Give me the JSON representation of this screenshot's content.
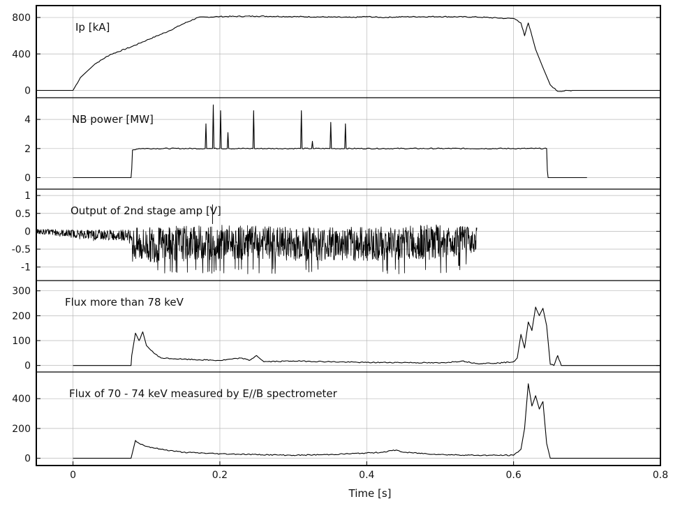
{
  "chart_data": {
    "type": "line",
    "xlabel": "Time [s]",
    "xlim": [
      -0.05,
      0.8
    ],
    "x_ticks": [
      0,
      0.2,
      0.4,
      0.6,
      0.8
    ],
    "x_tick_labels": [
      "0",
      "0.2",
      "0.4",
      "0.6",
      "0.8"
    ],
    "grid": true,
    "line_color": "#000000",
    "panels": [
      {
        "label": "Ip [kA]",
        "ylim": [
          -50,
          900
        ],
        "y_ticks": [
          0,
          400,
          800
        ],
        "y_tick_labels": [
          "0",
          "400",
          "800"
        ],
        "series": [
          {
            "x": [
              -0.05,
              0.0,
              0.01,
              0.03,
              0.05,
              0.08,
              0.1,
              0.13,
              0.15,
              0.17,
              0.2,
              0.25,
              0.3,
              0.35,
              0.38,
              0.4,
              0.42,
              0.45,
              0.5,
              0.55,
              0.59,
              0.6,
              0.605,
              0.61,
              0.615,
              0.62,
              0.625,
              0.63,
              0.64,
              0.65,
              0.66,
              0.68,
              0.7,
              0.75,
              0.8
            ],
            "y": [
              0,
              0,
              140,
              290,
              390,
              480,
              550,
              650,
              730,
              800,
              810,
              815,
              810,
              805,
              800,
              810,
              800,
              808,
              810,
              805,
              790,
              790,
              770,
              740,
              600,
              740,
              600,
              450,
              250,
              60,
              -10,
              0,
              0,
              0,
              0
            ]
          }
        ]
      },
      {
        "label": "NB power [MW]",
        "ylim": [
          -0.6,
          5.3
        ],
        "y_ticks": [
          0,
          2,
          4
        ],
        "y_tick_labels": [
          "0",
          "2",
          "4"
        ],
        "series": [
          {
            "x": [
              0.0,
              0.079,
              0.08,
              0.081,
              0.09,
              0.18,
              0.181,
              0.182,
              0.19,
              0.191,
              0.192,
              0.2,
              0.201,
              0.202,
              0.21,
              0.211,
              0.212,
              0.245,
              0.246,
              0.247,
              0.31,
              0.311,
              0.312,
              0.325,
              0.326,
              0.327,
              0.35,
              0.351,
              0.352,
              0.37,
              0.371,
              0.372,
              0.5,
              0.6,
              0.645,
              0.646,
              0.647,
              0.7
            ],
            "y": [
              0,
              0,
              0.6,
              1.9,
              2.0,
              2.0,
              3.7,
              2.0,
              2.0,
              5.0,
              2.0,
              2.0,
              4.6,
              2.0,
              2.0,
              3.1,
              2.0,
              2.0,
              4.6,
              2.0,
              2.0,
              4.6,
              2.0,
              2.0,
              2.5,
              2.0,
              2.0,
              3.8,
              2.0,
              2.0,
              3.7,
              2.0,
              2.0,
              2.0,
              2.0,
              0.5,
              0.0,
              0.0
            ]
          }
        ]
      },
      {
        "label": "Output of 2nd stage amp [V]",
        "ylim": [
          -1.3,
          1.1
        ],
        "y_ticks": [
          -1,
          -0.5,
          0,
          0.5,
          1
        ],
        "y_tick_labels": [
          "-1",
          "-0.5",
          "0",
          "0.5",
          "1"
        ],
        "series": [
          {
            "x": [
              -0.05,
              0.03,
              0.08,
              0.081,
              0.2,
              0.3,
              0.4,
              0.5,
              0.55
            ],
            "y": [
              0.0,
              -0.1,
              -0.1,
              -0.4,
              -0.3,
              -0.35,
              -0.35,
              -0.3,
              -0.2
            ],
            "envelope_upper": [
              0.1,
              0.1,
              0.1,
              0.25,
              0.2,
              0.2,
              0.2,
              0.2,
              0.1
            ],
            "envelope_lower": [
              -0.1,
              -0.3,
              -0.35,
              -1.2,
              -1.2,
              -1.2,
              -1.2,
              -1.2,
              -1.0
            ],
            "spike_x": 0.19,
            "spike_y": 0.75
          }
        ]
      },
      {
        "label": "Flux more than 78 keV",
        "ylim": [
          -15,
          330
        ],
        "y_ticks": [
          0,
          100,
          200,
          300
        ],
        "y_tick_labels": [
          "0",
          "100",
          "200",
          "300"
        ],
        "series": [
          {
            "x": [
              0.0,
              0.079,
              0.08,
              0.085,
              0.09,
              0.095,
              0.1,
              0.11,
              0.12,
              0.15,
              0.2,
              0.23,
              0.24,
              0.25,
              0.26,
              0.3,
              0.35,
              0.4,
              0.45,
              0.5,
              0.53,
              0.55,
              0.58,
              0.6,
              0.605,
              0.61,
              0.615,
              0.62,
              0.625,
              0.63,
              0.635,
              0.64,
              0.645,
              0.65,
              0.655,
              0.66,
              0.665,
              0.67,
              0.7,
              0.75,
              0.8
            ],
            "y": [
              0,
              0,
              40,
              130,
              100,
              135,
              80,
              50,
              30,
              25,
              20,
              30,
              20,
              40,
              15,
              18,
              15,
              12,
              12,
              10,
              18,
              8,
              10,
              15,
              30,
              125,
              70,
              175,
              140,
              235,
              200,
              230,
              160,
              5,
              0,
              40,
              0,
              0,
              0,
              0,
              0
            ]
          }
        ]
      },
      {
        "label": "Flux of 70 - 74 keV measured by E//B spectrometer",
        "ylim": [
          -30,
          560
        ],
        "y_ticks": [
          0,
          200,
          400
        ],
        "y_tick_labels": [
          "0",
          "200",
          "400"
        ],
        "series": [
          {
            "x": [
              0.0,
              0.079,
              0.085,
              0.09,
              0.1,
              0.12,
              0.15,
              0.2,
              0.25,
              0.3,
              0.35,
              0.4,
              0.42,
              0.44,
              0.45,
              0.5,
              0.55,
              0.6,
              0.61,
              0.615,
              0.62,
              0.625,
              0.63,
              0.635,
              0.64,
              0.645,
              0.65,
              0.7,
              0.75,
              0.8
            ],
            "y": [
              0,
              0,
              120,
              100,
              80,
              60,
              40,
              30,
              25,
              20,
              25,
              35,
              40,
              55,
              40,
              25,
              20,
              20,
              60,
              200,
              500,
              350,
              420,
              330,
              380,
              100,
              0,
              0,
              0,
              0
            ]
          }
        ]
      }
    ]
  }
}
